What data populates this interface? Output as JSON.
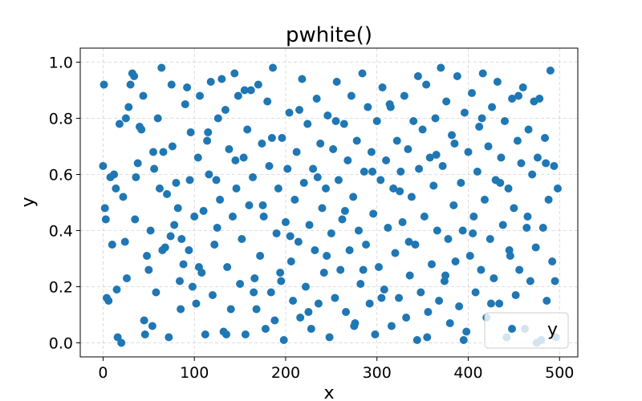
{
  "chart_data": {
    "type": "scatter",
    "title": "pwhite()",
    "xlabel": "x",
    "ylabel": "y",
    "xlim": [
      -25,
      520
    ],
    "ylim": [
      -0.05,
      1.05
    ],
    "xticks": [
      0,
      100,
      200,
      300,
      400,
      500
    ],
    "xtick_labels": [
      "0",
      "100",
      "200",
      "300",
      "400",
      "500"
    ],
    "yticks": [
      0.0,
      0.2,
      0.4,
      0.6,
      0.8,
      1.0
    ],
    "ytick_labels": [
      "0.0",
      "0.2",
      "0.4",
      "0.6",
      "0.8",
      "1.0"
    ],
    "grid": true,
    "legend_position": "lower-right",
    "series": [
      {
        "name": "y",
        "color": "#1f77b4",
        "x": [
          0,
          1,
          2,
          3,
          4,
          6,
          8,
          10,
          12,
          14,
          16,
          18,
          20,
          22,
          24,
          26,
          28,
          30,
          32,
          34,
          36,
          38,
          40,
          42,
          44,
          46,
          48,
          50,
          52,
          54,
          56,
          58,
          60,
          62,
          64,
          66,
          68,
          70,
          72,
          74,
          76,
          78,
          80,
          82,
          84,
          86,
          88,
          90,
          92,
          94,
          96,
          98,
          100,
          102,
          104,
          106,
          108,
          110,
          112,
          114,
          116,
          118,
          120,
          122,
          124,
          126,
          128,
          130,
          132,
          134,
          136,
          138,
          140,
          142,
          144,
          146,
          148,
          150,
          152,
          154,
          156,
          158,
          160,
          162,
          164,
          166,
          168,
          170,
          172,
          174,
          176,
          178,
          180,
          182,
          184,
          186,
          188,
          190,
          192,
          194,
          196,
          198,
          200,
          202,
          204,
          206,
          208,
          210,
          212,
          214,
          216,
          218,
          220,
          222,
          224,
          226,
          228,
          230,
          232,
          234,
          236,
          238,
          240,
          242,
          244,
          246,
          248,
          250,
          252,
          254,
          256,
          258,
          260,
          262,
          264,
          266,
          268,
          270,
          272,
          274,
          276,
          278,
          280,
          282,
          284,
          286,
          288,
          290,
          292,
          294,
          296,
          298,
          300,
          302,
          304,
          306,
          308,
          310,
          312,
          314,
          316,
          318,
          320,
          322,
          324,
          326,
          328,
          330,
          332,
          334,
          336,
          338,
          340,
          342,
          344,
          346,
          348,
          350,
          352,
          354,
          356,
          358,
          360,
          362,
          364,
          366,
          368,
          370,
          372,
          374,
          376,
          378,
          380,
          382,
          384,
          386,
          388,
          390,
          392,
          394,
          396,
          398,
          400,
          402,
          404,
          406,
          408,
          410,
          412,
          414,
          416,
          418,
          420,
          422,
          424,
          426,
          428,
          430,
          432,
          434,
          436,
          438,
          440,
          442,
          444,
          446,
          448,
          450,
          452,
          454,
          456,
          458,
          460,
          462,
          464,
          466,
          468,
          470,
          472,
          474,
          476,
          478,
          480,
          482,
          484,
          486,
          488,
          490,
          492,
          494,
          496,
          498,
          15,
          25,
          35,
          45,
          55,
          65,
          75,
          85,
          95,
          105,
          115,
          125,
          135,
          145,
          155,
          165,
          175,
          185,
          195,
          205,
          215,
          225,
          235,
          245,
          255,
          265,
          275,
          285,
          295,
          305,
          315,
          325,
          335,
          345,
          355,
          365,
          375,
          385,
          395,
          405,
          415,
          425,
          435,
          445,
          455,
          465,
          475,
          485,
          495
        ],
        "y": [
          0.63,
          0.92,
          0.48,
          0.44,
          0.16,
          0.15,
          0.59,
          0.35,
          0.6,
          0.55,
          0.02,
          0.78,
          0.0,
          0.52,
          0.36,
          0.23,
          0.84,
          0.92,
          0.96,
          0.95,
          0.59,
          0.64,
          0.77,
          0.76,
          0.88,
          0.03,
          0.31,
          0.26,
          0.4,
          0.06,
          0.62,
          0.18,
          0.8,
          0.55,
          0.98,
          0.68,
          0.34,
          0.53,
          0.02,
          0.38,
          0.7,
          0.42,
          0.57,
          0.48,
          0.22,
          0.37,
          0.28,
          0.85,
          0.91,
          0.33,
          0.75,
          0.2,
          0.45,
          0.14,
          0.66,
          0.88,
          0.25,
          0.47,
          0.03,
          0.72,
          0.6,
          0.93,
          0.17,
          0.35,
          0.58,
          0.8,
          0.51,
          0.94,
          0.04,
          0.83,
          0.27,
          0.69,
          0.12,
          0.45,
          0.96,
          0.55,
          0.88,
          0.21,
          0.37,
          0.66,
          0.03,
          0.76,
          0.49,
          0.9,
          0.59,
          0.23,
          0.12,
          0.92,
          0.31,
          0.71,
          0.45,
          0.05,
          0.86,
          0.63,
          0.18,
          0.98,
          0.08,
          0.39,
          0.55,
          0.25,
          0.73,
          0.01,
          0.43,
          0.62,
          0.82,
          0.29,
          0.15,
          0.51,
          0.68,
          0.36,
          0.09,
          0.94,
          0.57,
          0.2,
          0.78,
          0.42,
          0.05,
          0.62,
          0.33,
          0.87,
          0.14,
          0.71,
          0.48,
          0.25,
          0.55,
          0.81,
          0.02,
          0.39,
          0.69,
          0.16,
          0.93,
          0.58,
          0.26,
          0.44,
          0.78,
          0.11,
          0.65,
          0.33,
          0.88,
          0.52,
          0.07,
          0.72,
          0.4,
          0.21,
          0.96,
          0.61,
          0.35,
          0.84,
          0.14,
          0.68,
          0.46,
          0.03,
          0.79,
          0.27,
          0.58,
          0.91,
          0.19,
          0.65,
          0.41,
          0.85,
          0.06,
          0.55,
          0.32,
          0.72,
          0.16,
          0.61,
          0.43,
          0.88,
          0.09,
          0.69,
          0.24,
          0.52,
          0.79,
          0.35,
          0.01,
          0.62,
          0.18,
          0.76,
          0.45,
          0.92,
          0.11,
          0.66,
          0.28,
          0.56,
          0.8,
          0.4,
          0.15,
          0.98,
          0.63,
          0.22,
          0.86,
          0.37,
          0.07,
          0.74,
          0.49,
          0.29,
          0.95,
          0.13,
          0.57,
          0.4,
          0.82,
          0.04,
          0.68,
          0.31,
          0.89,
          0.45,
          0.18,
          0.61,
          0.77,
          0.26,
          0.96,
          0.51,
          0.09,
          0.7,
          0.37,
          0.84,
          0.23,
          0.58,
          0.93,
          0.14,
          0.66,
          0.42,
          0.79,
          0.02,
          0.55,
          0.31,
          0.87,
          0.48,
          0.17,
          0.72,
          0.26,
          0.64,
          0.91,
          0.05,
          0.41,
          0.76,
          0.22,
          0.6,
          0.86,
          0.34,
          0.66,
          0.87,
          0.01,
          0.41,
          0.73,
          0.15,
          0.51,
          0.97,
          0.29,
          0.63,
          0.02,
          0.55,
          0.19,
          0.8,
          0.44,
          0.08,
          0.68,
          0.33,
          0.92,
          0.12,
          0.58,
          0.27,
          0.75,
          0.41,
          0.03,
          0.65,
          0.9,
          0.18,
          0.49,
          0.73,
          0.22,
          0.38,
          0.83,
          0.11,
          0.59,
          0.31,
          0.79,
          0.47,
          0.06,
          0.26,
          0.61,
          0.16,
          0.84,
          0.54,
          0.36,
          0.95,
          0.02,
          0.67,
          0.24,
          0.71,
          0.01,
          0.39,
          0.8,
          0.14,
          0.57,
          0.33,
          0.88,
          0.45,
          0.0,
          0.64,
          0.22
        ]
      }
    ]
  }
}
